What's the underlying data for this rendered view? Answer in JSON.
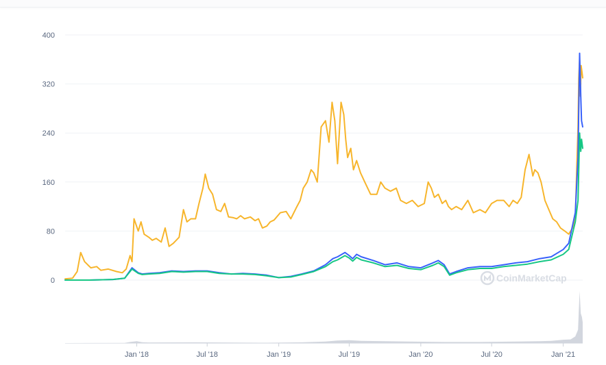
{
  "watermark": {
    "text": "CoinMarketCap",
    "icon": "coinmarketcap-logo-icon"
  },
  "colors": {
    "orange": "#f7b52b",
    "blue": "#3861fb",
    "green": "#16c784",
    "grid": "#eff2f5",
    "volume": "#c7ccd6"
  },
  "chart_data": {
    "type": "line",
    "ylim": [
      0,
      400
    ],
    "xlim": [
      "2017-07-01",
      "2021-02-20"
    ],
    "grid": true,
    "yticks": [
      "0",
      "80",
      "160",
      "240",
      "320",
      "400"
    ],
    "ytick_values": [
      0,
      80,
      160,
      240,
      320,
      400
    ],
    "xticks": [
      {
        "label": "Jan '18",
        "date": "2018-01-01"
      },
      {
        "label": "Jul '18",
        "date": "2018-07-01"
      },
      {
        "label": "Jan '19",
        "date": "2019-01-01"
      },
      {
        "label": "Jul '19",
        "date": "2019-07-01"
      },
      {
        "label": "Jan '20",
        "date": "2020-01-01"
      },
      {
        "label": "Jul '20",
        "date": "2020-07-01"
      },
      {
        "label": "Jan '21",
        "date": "2021-01-01"
      }
    ],
    "series": [
      {
        "color": "#f7b52b",
        "x": [
          "2017-07-01",
          "2017-07-20",
          "2017-08-01",
          "2017-08-10",
          "2017-08-20",
          "2017-09-05",
          "2017-09-20",
          "2017-10-01",
          "2017-10-20",
          "2017-11-10",
          "2017-11-25",
          "2017-12-05",
          "2017-12-15",
          "2017-12-20",
          "2017-12-25",
          "2018-01-05",
          "2018-01-12",
          "2018-01-20",
          "2018-02-01",
          "2018-02-10",
          "2018-02-20",
          "2018-03-05",
          "2018-03-15",
          "2018-03-25",
          "2018-04-05",
          "2018-04-20",
          "2018-05-01",
          "2018-05-10",
          "2018-05-20",
          "2018-06-01",
          "2018-06-10",
          "2018-06-20",
          "2018-06-26",
          "2018-07-05",
          "2018-07-15",
          "2018-07-25",
          "2018-08-05",
          "2018-08-15",
          "2018-08-25",
          "2018-09-05",
          "2018-09-15",
          "2018-09-25",
          "2018-10-05",
          "2018-10-20",
          "2018-11-01",
          "2018-11-10",
          "2018-11-20",
          "2018-12-01",
          "2018-12-10",
          "2018-12-20",
          "2019-01-05",
          "2019-01-20",
          "2019-02-01",
          "2019-02-15",
          "2019-02-25",
          "2019-03-05",
          "2019-03-15",
          "2019-03-25",
          "2019-04-01",
          "2019-04-10",
          "2019-04-20",
          "2019-05-01",
          "2019-05-10",
          "2019-05-18",
          "2019-05-25",
          "2019-06-01",
          "2019-06-10",
          "2019-06-17",
          "2019-06-22",
          "2019-06-27",
          "2019-07-05",
          "2019-07-12",
          "2019-07-20",
          "2019-07-30",
          "2019-08-10",
          "2019-08-25",
          "2019-09-10",
          "2019-09-20",
          "2019-10-01",
          "2019-10-15",
          "2019-10-30",
          "2019-11-10",
          "2019-11-25",
          "2019-12-10",
          "2019-12-25",
          "2020-01-10",
          "2020-01-20",
          "2020-01-28",
          "2020-02-05",
          "2020-02-15",
          "2020-02-25",
          "2020-03-05",
          "2020-03-12",
          "2020-03-20",
          "2020-04-01",
          "2020-04-15",
          "2020-05-01",
          "2020-05-15",
          "2020-06-01",
          "2020-06-15",
          "2020-07-01",
          "2020-07-15",
          "2020-08-01",
          "2020-08-15",
          "2020-08-25",
          "2020-09-05",
          "2020-09-15",
          "2020-09-25",
          "2020-10-05",
          "2020-10-15",
          "2020-10-20",
          "2020-10-28",
          "2020-11-05",
          "2020-11-15",
          "2020-11-25",
          "2020-12-05",
          "2020-12-15",
          "2020-12-25",
          "2021-01-05",
          "2021-01-15",
          "2021-01-25",
          "2021-02-01",
          "2021-02-05",
          "2021-02-08",
          "2021-02-10",
          "2021-02-12",
          "2021-02-14",
          "2021-02-16",
          "2021-02-18",
          "2021-02-20"
        ],
        "y": [
          2,
          3,
          14,
          45,
          30,
          20,
          22,
          16,
          18,
          14,
          12,
          18,
          40,
          30,
          100,
          80,
          95,
          75,
          70,
          65,
          68,
          62,
          85,
          55,
          60,
          70,
          115,
          95,
          100,
          100,
          125,
          150,
          173,
          150,
          140,
          115,
          112,
          125,
          103,
          102,
          100,
          105,
          100,
          103,
          97,
          100,
          85,
          88,
          95,
          98,
          110,
          112,
          100,
          118,
          130,
          150,
          160,
          180,
          175,
          160,
          250,
          260,
          225,
          290,
          260,
          190,
          290,
          270,
          230,
          200,
          215,
          180,
          195,
          175,
          160,
          140,
          140,
          160,
          150,
          145,
          150,
          130,
          125,
          130,
          120,
          125,
          160,
          150,
          135,
          140,
          125,
          130,
          120,
          115,
          120,
          115,
          130,
          110,
          115,
          110,
          125,
          130,
          130,
          120,
          130,
          125,
          135,
          180,
          205,
          170,
          180,
          175,
          160,
          130,
          115,
          100,
          95,
          85,
          80,
          75,
          85,
          100,
          190,
          250,
          330,
          360,
          300,
          350,
          340,
          330
        ]
      },
      {
        "color": "#3861fb",
        "x": [
          "2017-07-01",
          "2017-09-01",
          "2017-11-01",
          "2017-12-01",
          "2017-12-20",
          "2018-01-05",
          "2018-01-15",
          "2018-02-01",
          "2018-03-01",
          "2018-04-01",
          "2018-05-01",
          "2018-06-01",
          "2018-07-01",
          "2018-08-01",
          "2018-09-01",
          "2018-10-01",
          "2018-11-01",
          "2018-12-01",
          "2019-01-01",
          "2019-02-01",
          "2019-03-01",
          "2019-04-01",
          "2019-05-01",
          "2019-05-20",
          "2019-06-01",
          "2019-06-20",
          "2019-07-01",
          "2019-07-10",
          "2019-07-20",
          "2019-08-01",
          "2019-09-01",
          "2019-10-01",
          "2019-11-01",
          "2019-12-01",
          "2020-01-01",
          "2020-02-01",
          "2020-02-15",
          "2020-03-01",
          "2020-03-15",
          "2020-04-01",
          "2020-05-01",
          "2020-06-01",
          "2020-07-01",
          "2020-08-01",
          "2020-09-01",
          "2020-10-01",
          "2020-11-01",
          "2020-12-01",
          "2021-01-01",
          "2021-01-15",
          "2021-02-01",
          "2021-02-08",
          "2021-02-12",
          "2021-02-15",
          "2021-02-17",
          "2021-02-20"
        ],
        "y": [
          0,
          0,
          1,
          3,
          20,
          12,
          10,
          11,
          12,
          15,
          14,
          15,
          15,
          12,
          10,
          11,
          10,
          8,
          4,
          6,
          10,
          15,
          25,
          35,
          38,
          45,
          40,
          35,
          42,
          38,
          32,
          25,
          28,
          22,
          20,
          28,
          32,
          25,
          10,
          14,
          20,
          22,
          22,
          25,
          28,
          30,
          35,
          38,
          50,
          60,
          110,
          200,
          370,
          300,
          260,
          250
        ]
      },
      {
        "color": "#16c784",
        "x": [
          "2017-07-01",
          "2017-09-01",
          "2017-11-01",
          "2017-12-01",
          "2017-12-20",
          "2018-01-05",
          "2018-01-15",
          "2018-02-01",
          "2018-03-01",
          "2018-04-01",
          "2018-05-01",
          "2018-06-01",
          "2018-07-01",
          "2018-08-01",
          "2018-09-01",
          "2018-10-01",
          "2018-11-01",
          "2018-12-01",
          "2019-01-01",
          "2019-02-01",
          "2019-03-01",
          "2019-04-01",
          "2019-05-01",
          "2019-05-20",
          "2019-06-01",
          "2019-06-20",
          "2019-07-01",
          "2019-07-10",
          "2019-07-20",
          "2019-08-01",
          "2019-09-01",
          "2019-10-01",
          "2019-11-01",
          "2019-12-01",
          "2020-01-01",
          "2020-02-01",
          "2020-02-15",
          "2020-03-01",
          "2020-03-15",
          "2020-04-01",
          "2020-05-01",
          "2020-06-01",
          "2020-07-01",
          "2020-08-01",
          "2020-09-01",
          "2020-10-01",
          "2020-11-01",
          "2020-12-01",
          "2021-01-01",
          "2021-01-15",
          "2021-02-01",
          "2021-02-08",
          "2021-02-12",
          "2021-02-15",
          "2021-02-17",
          "2021-02-20"
        ],
        "y": [
          0,
          0,
          1,
          3,
          18,
          11,
          9,
          10,
          11,
          14,
          13,
          14,
          14,
          11,
          10,
          10,
          9,
          7,
          4,
          5,
          9,
          14,
          22,
          30,
          33,
          40,
          36,
          31,
          37,
          33,
          28,
          22,
          24,
          19,
          17,
          24,
          28,
          22,
          8,
          12,
          17,
          19,
          19,
          22,
          24,
          26,
          30,
          33,
          42,
          50,
          95,
          130,
          240,
          210,
          230,
          215
        ]
      }
    ],
    "volume": {
      "color": "#c7ccd6",
      "x": [
        "2017-07-01",
        "2017-12-01",
        "2017-12-15",
        "2018-01-01",
        "2018-01-15",
        "2018-02-01",
        "2018-06-01",
        "2018-12-01",
        "2019-03-01",
        "2019-05-01",
        "2019-06-01",
        "2019-07-01",
        "2019-08-01",
        "2019-12-01",
        "2020-03-01",
        "2020-06-01",
        "2020-09-01",
        "2020-11-01",
        "2020-12-01",
        "2021-01-01",
        "2021-01-20",
        "2021-02-01",
        "2021-02-08",
        "2021-02-12",
        "2021-02-15",
        "2021-02-18",
        "2021-02-20"
      ],
      "y": [
        0,
        0.3,
        1.5,
        2.5,
        1.2,
        0.8,
        1,
        0.5,
        1,
        2,
        3.5,
        4,
        3,
        2,
        1.5,
        1.5,
        2,
        2.5,
        3,
        4.5,
        5,
        9,
        18,
        70,
        40,
        35,
        28
      ]
    }
  }
}
